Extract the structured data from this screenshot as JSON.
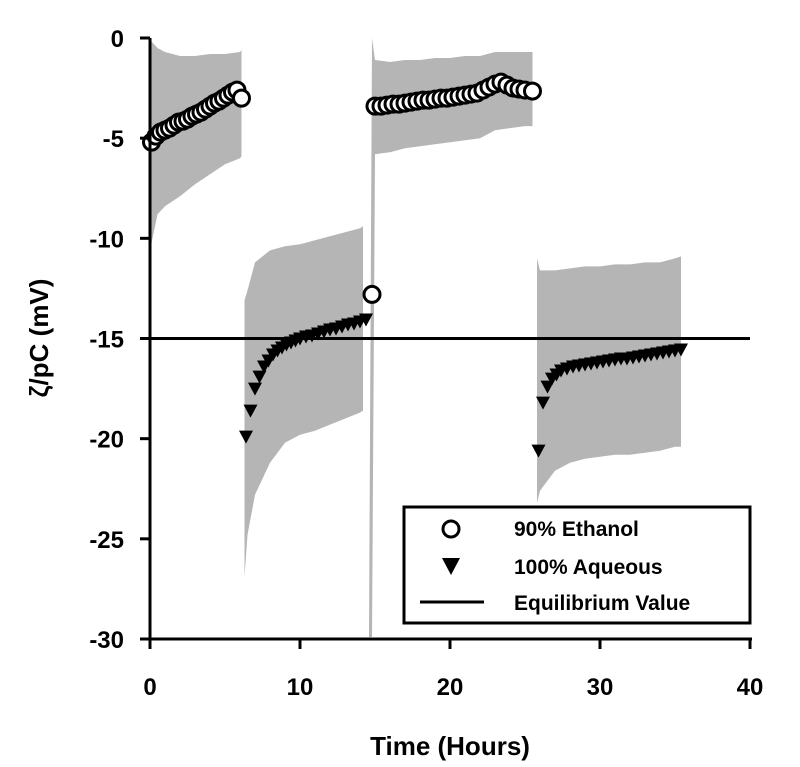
{
  "chart_data": {
    "type": "scatter",
    "xlabel": "Time (Hours)",
    "ylabel": "ζ/pC (mV)",
    "xlim": [
      0,
      40
    ],
    "ylim": [
      -30,
      0
    ],
    "x_ticks": [
      0,
      10,
      20,
      30,
      40
    ],
    "y_ticks": [
      0,
      -5,
      -10,
      -15,
      -20,
      -25,
      -30
    ],
    "grid": false,
    "legend_position": "bottom-right",
    "colors": {
      "band": "#b5b5b5",
      "marker": "#000000",
      "axis": "#000000"
    },
    "reference_line": {
      "name": "Equilibrium Value",
      "y": -15
    },
    "series": [
      {
        "name": "90% Ethanol",
        "marker": "open-circle",
        "segments": [
          {
            "x": [
              0.1,
              0.4,
              0.7,
              1.0,
              1.3,
              1.6,
              1.9,
              2.2,
              2.5,
              2.8,
              3.1,
              3.4,
              3.7,
              4.0,
              4.3,
              4.6,
              4.9,
              5.2,
              5.5,
              5.8,
              6.1
            ],
            "y": [
              -5.2,
              -4.9,
              -4.7,
              -4.6,
              -4.5,
              -4.35,
              -4.2,
              -4.15,
              -4.05,
              -3.9,
              -3.8,
              -3.7,
              -3.55,
              -3.4,
              -3.25,
              -3.15,
              -3.0,
              -2.85,
              -2.7,
              -2.6,
              -3.0
            ]
          },
          {
            "x": [
              14.8
            ],
            "y": [
              -12.8
            ]
          },
          {
            "x": [
              15.0,
              15.4,
              15.8,
              16.2,
              16.6,
              17.0,
              17.4,
              17.8,
              18.2,
              18.6,
              19.0,
              19.4,
              19.8,
              20.2,
              20.6,
              21.0,
              21.4,
              21.8,
              22.2,
              22.6,
              23.0,
              23.4,
              23.8,
              24.2,
              24.6,
              25.0,
              25.5
            ],
            "y": [
              -3.4,
              -3.4,
              -3.35,
              -3.3,
              -3.3,
              -3.25,
              -3.2,
              -3.15,
              -3.1,
              -3.1,
              -3.05,
              -3.0,
              -3.0,
              -2.95,
              -2.9,
              -2.85,
              -2.8,
              -2.75,
              -2.6,
              -2.45,
              -2.3,
              -2.2,
              -2.35,
              -2.5,
              -2.55,
              -2.6,
              -2.65
            ]
          }
        ]
      },
      {
        "name": "100% Aqueous",
        "marker": "filled-triangle-down",
        "segments": [
          {
            "x": [
              6.4,
              6.7,
              7.0,
              7.3,
              7.6,
              7.9,
              8.2,
              8.5,
              8.8,
              9.1,
              9.4,
              9.7,
              10.0,
              10.4,
              10.8,
              11.2,
              11.6,
              12.0,
              12.4,
              12.8,
              13.2,
              13.6,
              14.0,
              14.4
            ],
            "y": [
              -19.9,
              -18.6,
              -17.5,
              -16.9,
              -16.4,
              -16.1,
              -15.8,
              -15.6,
              -15.45,
              -15.3,
              -15.2,
              -15.1,
              -15.0,
              -14.9,
              -14.85,
              -14.75,
              -14.65,
              -14.55,
              -14.5,
              -14.4,
              -14.3,
              -14.25,
              -14.15,
              -14.05
            ]
          },
          {
            "x": [
              25.9,
              26.2,
              26.5,
              26.8,
              27.1,
              27.4,
              27.8,
              28.2,
              28.6,
              29.0,
              29.4,
              29.8,
              30.2,
              30.6,
              31.0,
              31.4,
              31.8,
              32.2,
              32.6,
              33.0,
              33.4,
              33.8,
              34.2,
              34.6,
              35.0,
              35.4
            ],
            "y": [
              -20.6,
              -18.2,
              -17.4,
              -17.0,
              -16.8,
              -16.6,
              -16.5,
              -16.4,
              -16.35,
              -16.3,
              -16.25,
              -16.2,
              -16.15,
              -16.1,
              -16.05,
              -16.0,
              -16.0,
              -15.95,
              -15.9,
              -15.85,
              -15.8,
              -15.75,
              -15.7,
              -15.65,
              -15.6,
              -15.55
            ]
          }
        ]
      }
    ],
    "uncertainty_bands": [
      {
        "x": [
          0,
          0.5,
          1,
          2,
          3,
          4,
          5,
          6,
          6.1
        ],
        "upper": [
          -0.1,
          -0.5,
          -0.7,
          -0.9,
          -0.9,
          -0.8,
          -0.8,
          -0.7,
          -0.6
        ],
        "lower": [
          -10.6,
          -8.8,
          -8.4,
          -7.9,
          -7.3,
          -6.8,
          -6.3,
          -6.0,
          -5.9
        ]
      },
      {
        "x": [
          6.3,
          6.5,
          7,
          8,
          9,
          10,
          11,
          12,
          13,
          14,
          14.2
        ],
        "upper": [
          -13.1,
          -12.6,
          -11.2,
          -10.6,
          -10.4,
          -10.3,
          -10.1,
          -9.9,
          -9.7,
          -9.5,
          -9.4
        ],
        "lower": [
          -26.9,
          -24.8,
          -22.8,
          -21.2,
          -20.2,
          -19.8,
          -19.6,
          -19.3,
          -19.0,
          -18.7,
          -18.6
        ]
      },
      {
        "x": [
          14.6,
          14.8,
          15.0,
          16,
          17,
          18,
          19,
          20,
          21,
          22,
          23,
          24,
          25,
          25.5
        ],
        "upper": [
          -29.9,
          0,
          -1.1,
          -1.2,
          -1.1,
          -1.1,
          -1.0,
          -1.0,
          -0.9,
          -0.9,
          -0.7,
          -0.7,
          -0.7,
          -0.7
        ],
        "lower": [
          -29.9,
          -29.9,
          -5.8,
          -5.7,
          -5.5,
          -5.4,
          -5.3,
          -5.2,
          -5.1,
          -5.0,
          -4.6,
          -4.5,
          -4.4,
          -4.4
        ]
      },
      {
        "x": [
          25.8,
          26,
          27,
          28,
          29,
          30,
          31,
          32,
          33,
          34,
          35,
          35.4
        ],
        "upper": [
          -11.0,
          -11.6,
          -11.6,
          -11.5,
          -11.4,
          -11.4,
          -11.3,
          -11.3,
          -11.2,
          -11.2,
          -11.0,
          -10.9
        ],
        "lower": [
          -23.2,
          -22.6,
          -21.6,
          -21.2,
          -21.0,
          -20.9,
          -20.8,
          -20.8,
          -20.7,
          -20.6,
          -20.4,
          -20.4
        ]
      }
    ],
    "legend": [
      "90% Ethanol",
      "100% Aqueous",
      "Equilibrium Value"
    ]
  }
}
